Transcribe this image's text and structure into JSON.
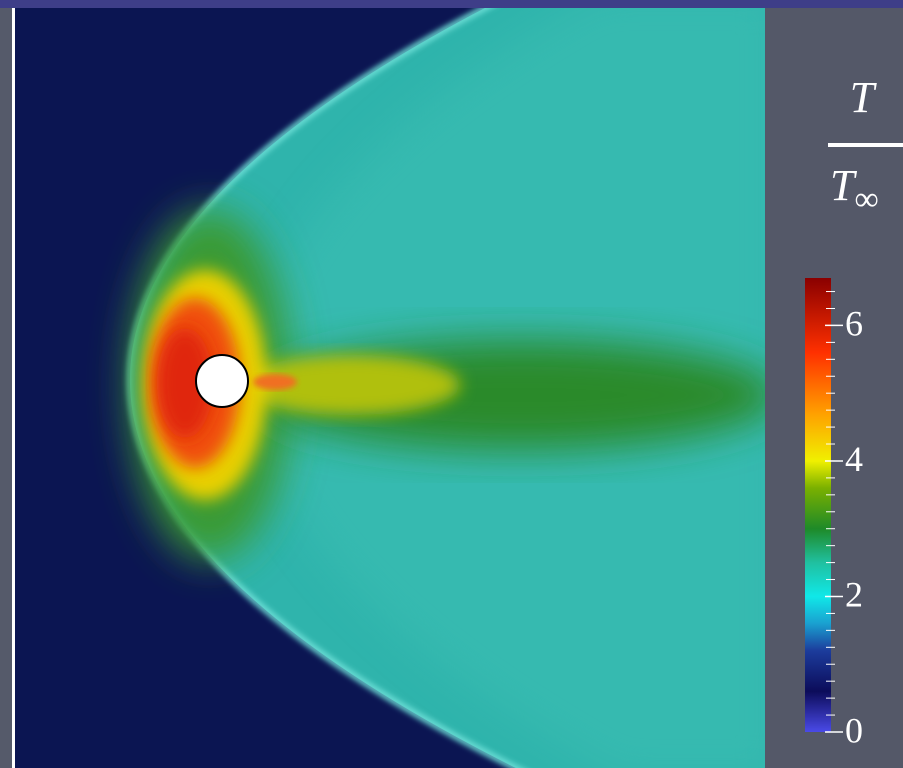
{
  "chart_data": {
    "type": "field",
    "colorbar_label": {
      "numerator": "T",
      "denominator": "T",
      "denominator_subscript": "∞"
    },
    "ylim": [
      0,
      6.7
    ],
    "yticks": [
      0,
      2,
      4,
      6
    ],
    "minor_tick_step": 0.25,
    "colormap": [
      {
        "value": 0,
        "color": "#4a4ae8"
      },
      {
        "value": 0.6,
        "color": "#0c0c5a"
      },
      {
        "value": 1.2,
        "color": "#1c3c9c"
      },
      {
        "value": 1.6,
        "color": "#1aa0d0"
      },
      {
        "value": 2,
        "color": "#10e8e8"
      },
      {
        "value": 2.5,
        "color": "#20c0a0"
      },
      {
        "value": 3,
        "color": "#1e8a28"
      },
      {
        "value": 3.6,
        "color": "#7ab000"
      },
      {
        "value": 4,
        "color": "#f0f000"
      },
      {
        "value": 4.7,
        "color": "#ffa000"
      },
      {
        "value": 5.6,
        "color": "#ff3000"
      },
      {
        "value": 6.7,
        "color": "#8a0000"
      }
    ]
  }
}
